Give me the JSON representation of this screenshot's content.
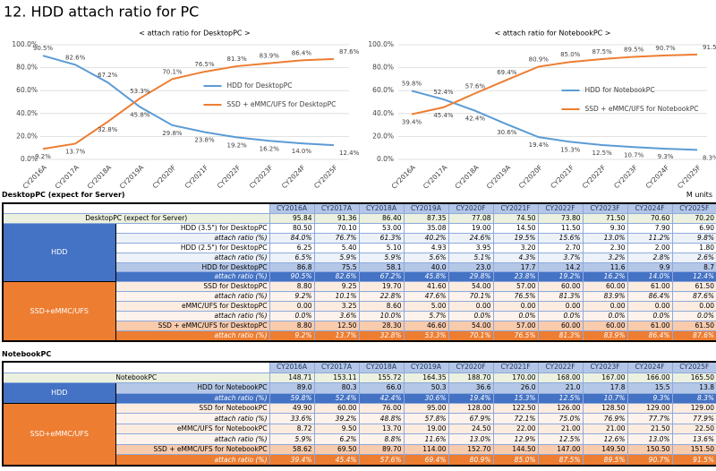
{
  "title": "12. HDD attach ratio for PC",
  "chart_data": [
    {
      "type": "line",
      "title": "< attach ratio for DesktopPC >",
      "categories": [
        "CY2016A",
        "CY2017A",
        "CY2018A",
        "CY2019A",
        "CY2020F",
        "CY2021F",
        "CY2022F",
        "CY2023F",
        "CY2024F",
        "CY2025F"
      ],
      "series": [
        {
          "name": "HDD for DesktopPC",
          "color": "#5b9bd5",
          "values": [
            90.5,
            82.6,
            67.2,
            45.8,
            29.8,
            23.8,
            19.2,
            16.2,
            14.0,
            12.4
          ],
          "value_labels": [
            "90.5%",
            "82.6%",
            "67.2%",
            "45.8%",
            "29.8%",
            "23.8%",
            "19.2%",
            "16.2%",
            "14.0%",
            "12.4%"
          ]
        },
        {
          "name": "SSD + eMMC/UFS for DesktopPC",
          "color": "#ed7d31",
          "values": [
            9.2,
            13.7,
            32.8,
            53.3,
            70.1,
            76.5,
            81.3,
            83.9,
            86.4,
            87.6
          ],
          "value_labels": [
            "9.2%",
            "13.7%",
            "32.8%",
            "53.3%",
            "70.1%",
            "76.5%",
            "81.3%",
            "83.9%",
            "86.4%",
            "87.6%"
          ]
        }
      ],
      "ylim": [
        0,
        100
      ],
      "yticks": [
        {
          "value": 0,
          "label": "0.0%"
        },
        {
          "value": 20,
          "label": "20.0%"
        },
        {
          "value": 40,
          "label": "40.0%"
        },
        {
          "value": 60,
          "label": "60.0%"
        },
        {
          "value": 80,
          "label": "80.0%"
        },
        {
          "value": 100,
          "label": "100.0%"
        }
      ],
      "grid": true,
      "legend": "center-right"
    },
    {
      "type": "line",
      "title": "< attach ratio for NotebookPC >",
      "categories": [
        "CY2016A",
        "CY2017A",
        "CY2018A",
        "CY2019A",
        "CY2020F",
        "CY2021F",
        "CY2022F",
        "CY2023F",
        "CY2024F",
        "CY2025F"
      ],
      "series": [
        {
          "name": "HDD for NotebookPC",
          "color": "#5b9bd5",
          "values": [
            59.8,
            52.4,
            42.4,
            30.6,
            19.4,
            15.3,
            12.5,
            10.7,
            9.3,
            8.3
          ],
          "value_labels": [
            "59.8%",
            "52.4%",
            "42.4%",
            "30.6%",
            "19.4%",
            "15.3%",
            "12.5%",
            "10.7%",
            "9.3%",
            "8.3%"
          ]
        },
        {
          "name": "SSD + eMMC/UFS for NotebookPC",
          "color": "#ed7d31",
          "values": [
            39.4,
            45.4,
            57.6,
            69.4,
            80.9,
            85.0,
            87.5,
            89.5,
            90.7,
            91.5
          ],
          "value_labels": [
            "39.4%",
            "45.4%",
            "57.6%",
            "69.4%",
            "80.9%",
            "85.0%",
            "87.5%",
            "89.5%",
            "90.7%",
            "91.5%"
          ]
        }
      ],
      "ylim": [
        0,
        100
      ],
      "yticks": [
        {
          "value": 0,
          "label": "0.0%"
        },
        {
          "value": 20,
          "label": "20.0%"
        },
        {
          "value": 40,
          "label": "40.0%"
        },
        {
          "value": 60,
          "label": "60.0%"
        },
        {
          "value": 80,
          "label": "80.0%"
        },
        {
          "value": 100,
          "label": "100.0%"
        }
      ],
      "grid": true,
      "legend": "center-right"
    }
  ],
  "tables": [
    {
      "title": "DesktopPC (expect for Server)",
      "unit": "M units",
      "columns": [
        "CY2016A",
        "CY2017A",
        "CY2018A",
        "CY2019A",
        "CY2020F",
        "CY2021F",
        "CY2022F",
        "CY2023F",
        "CY2024F",
        "CY2025F"
      ],
      "total": {
        "label": "DesktopPC (expect for Server)",
        "cells": [
          "95.84",
          "91.36",
          "86.40",
          "87.35",
          "77.08",
          "74.50",
          "73.80",
          "71.50",
          "70.60",
          "70.20"
        ]
      },
      "groups": [
        {
          "name": "HDD",
          "color": "#4472c4",
          "rows": [
            {
              "label": "HDD (3.5\") for DesktopPC",
              "cells": [
                "80.50",
                "70.10",
                "53.00",
                "35.08",
                "19.00",
                "14.50",
                "11.50",
                "9.30",
                "7.90",
                "6.90"
              ]
            },
            {
              "label": "attach ratio (%)",
              "cells": [
                "84.0%",
                "76.7%",
                "61.3%",
                "40.2%",
                "24.6%",
                "19.5%",
                "15.6%",
                "13.0%",
                "11.2%",
                "9.8%"
              ]
            },
            {
              "label": "HDD (2.5\") for DesktopPC",
              "cells": [
                "6.25",
                "5.40",
                "5.10",
                "4.93",
                "3.95",
                "3.20",
                "2.70",
                "2.30",
                "2.00",
                "1.80"
              ]
            },
            {
              "label": "attach ratio (%)",
              "cells": [
                "6.5%",
                "5.9%",
                "5.9%",
                "5.6%",
                "5.1%",
                "4.3%",
                "3.7%",
                "3.2%",
                "2.8%",
                "2.6%"
              ]
            },
            {
              "label": "HDD for DesktopPC",
              "cells": [
                "86.8",
                "75.5",
                "58.1",
                "40.0",
                "23.0",
                "17.7",
                "14.2",
                "11.6",
                "9.9",
                "8.7"
              ]
            },
            {
              "label": "attach ratio (%)",
              "cells": [
                "90.5%",
                "82.6%",
                "67.2%",
                "45.8%",
                "29.8%",
                "23.8%",
                "19.2%",
                "16.2%",
                "14.0%",
                "12.4%"
              ]
            }
          ]
        },
        {
          "name": "SSD+eMMC/UFS",
          "color": "#ed7d31",
          "rows": [
            {
              "label": "SSD for DesktopPC",
              "cells": [
                "8.80",
                "9.25",
                "19.70",
                "41.60",
                "54.00",
                "57.00",
                "60.00",
                "60.00",
                "61.00",
                "61.50"
              ]
            },
            {
              "label": "attach ratio (%)",
              "cells": [
                "9.2%",
                "10.1%",
                "22.8%",
                "47.6%",
                "70.1%",
                "76.5%",
                "81.3%",
                "83.9%",
                "86.4%",
                "87.6%"
              ]
            },
            {
              "label": "eMMC/UFS for DesktopPC",
              "cells": [
                "0.00",
                "3.25",
                "8.60",
                "5.00",
                "0.00",
                "0.00",
                "0.00",
                "0.00",
                "0.00",
                "0.00"
              ]
            },
            {
              "label": "attach ratio (%)",
              "cells": [
                "0.0%",
                "3.6%",
                "10.0%",
                "5.7%",
                "0.0%",
                "0.0%",
                "0.0%",
                "0.0%",
                "0.0%",
                "0.0%"
              ]
            },
            {
              "label": "SSD + eMMC/UFS for DesktopPC",
              "cells": [
                "8.80",
                "12.50",
                "28.30",
                "46.60",
                "54.00",
                "57.00",
                "60.00",
                "60.00",
                "61.00",
                "61.50"
              ]
            },
            {
              "label": "attach ratio (%)",
              "cells": [
                "9.2%",
                "13.7%",
                "32.8%",
                "53.3%",
                "70.1%",
                "76.5%",
                "81.3%",
                "83.9%",
                "86.4%",
                "87.6%"
              ]
            }
          ]
        }
      ]
    },
    {
      "title": "NotebookPC",
      "columns": [
        "CY2016A",
        "CY2017A",
        "CY2018A",
        "CY2019A",
        "CY2020F",
        "CY2021F",
        "CY2022F",
        "CY2023F",
        "CY2024F",
        "CY2025F"
      ],
      "total": {
        "label": "NotebookPC",
        "cells": [
          "148.71",
          "153.11",
          "155.72",
          "164.35",
          "188.70",
          "170.00",
          "168.00",
          "167.00",
          "166.00",
          "165.50"
        ]
      },
      "groups": [
        {
          "name": "HDD",
          "color": "#4472c4",
          "rows": [
            {
              "label": "HDD for NotebookPC",
              "cells": [
                "89.0",
                "80.3",
                "66.0",
                "50.3",
                "36.6",
                "26.0",
                "21.0",
                "17.8",
                "15.5",
                "13.8"
              ]
            },
            {
              "label": "attach ratio (%)",
              "cells": [
                "59.8%",
                "52.4%",
                "42.4%",
                "30.6%",
                "19.4%",
                "15.3%",
                "12.5%",
                "10.7%",
                "9.3%",
                "8.3%"
              ]
            }
          ]
        },
        {
          "name": "SSD+eMMC/UFS",
          "color": "#ed7d31",
          "rows": [
            {
              "label": "SSD for NotebookPC",
              "cells": [
                "49.90",
                "60.00",
                "76.00",
                "95.00",
                "128.00",
                "122.50",
                "126.00",
                "128.50",
                "129.00",
                "129.00"
              ]
            },
            {
              "label": "attach ratio (%)",
              "cells": [
                "33.6%",
                "39.2%",
                "48.8%",
                "57.8%",
                "67.9%",
                "72.1%",
                "75.0%",
                "76.9%",
                "77.7%",
                "77.9%"
              ]
            },
            {
              "label": "eMMC/UFS for NotebookPC",
              "cells": [
                "8.72",
                "9.50",
                "13.70",
                "19.00",
                "24.50",
                "22.00",
                "21.00",
                "21.00",
                "21.50",
                "22.50"
              ]
            },
            {
              "label": "attach ratio (%)",
              "cells": [
                "5.9%",
                "6.2%",
                "8.8%",
                "11.6%",
                "13.0%",
                "12.9%",
                "12.5%",
                "12.6%",
                "13.0%",
                "13.6%"
              ]
            },
            {
              "label": "SSD + eMMC/UFS for NotebookPC",
              "cells": [
                "58.62",
                "69.50",
                "89.70",
                "114.00",
                "152.70",
                "144.50",
                "147.00",
                "149.50",
                "150.50",
                "151.50"
              ]
            },
            {
              "label": "attach ratio (%)",
              "cells": [
                "39.4%",
                "45.4%",
                "57.6%",
                "69.4%",
                "80.9%",
                "85.0%",
                "87.5%",
                "89.5%",
                "90.7%",
                "91.5%"
              ]
            }
          ]
        }
      ]
    }
  ]
}
